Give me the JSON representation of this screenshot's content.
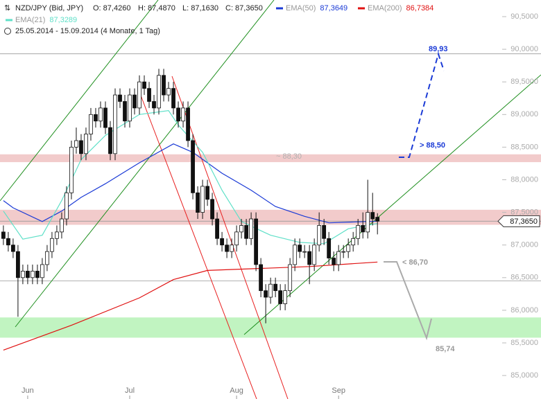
{
  "chart_data": {
    "type": "candlestick",
    "symbol": "NZD/JPY (Bid, JPY)",
    "ohlc_text": [
      "O: 87,4260",
      "H: 87,4870",
      "L: 87,1630",
      "C: 87,3650"
    ],
    "date_range": "25.05.2014 - 15.09.2014 (4 Monate, 1 Tag)",
    "last_price_label": "87,3650",
    "last_price": 87.365,
    "ylim": [
      84.64,
      90.755
    ],
    "yticks": [
      {
        "value": 85.0,
        "label": "85,0000"
      },
      {
        "value": 85.5,
        "label": "85,5000"
      },
      {
        "value": 86.0,
        "label": "86,0000"
      },
      {
        "value": 86.5,
        "label": "86,5000"
      },
      {
        "value": 87.0,
        "label": "87,0000"
      },
      {
        "value": 87.5,
        "label": "87,5000"
      },
      {
        "value": 88.0,
        "label": "88,0000"
      },
      {
        "value": 88.5,
        "label": "88,5000"
      },
      {
        "value": 89.0,
        "label": "89,0000"
      },
      {
        "value": 89.5,
        "label": "89,5000"
      },
      {
        "value": 90.0,
        "label": "90,0000"
      },
      {
        "value": 90.5,
        "label": "90,5000"
      }
    ],
    "xlim": [
      -0.7,
      102.1
    ],
    "xticks": [
      {
        "value": 5,
        "label": "Jun"
      },
      {
        "value": 26,
        "label": "Jul"
      },
      {
        "value": 48,
        "label": "Aug"
      },
      {
        "value": 69,
        "label": "Sep"
      }
    ],
    "candles": [
      [
        87.2,
        87.3,
        87.0,
        87.1
      ],
      [
        87.1,
        87.2,
        86.9,
        87.0
      ],
      [
        87.0,
        87.1,
        86.8,
        86.9
      ],
      [
        86.9,
        87.0,
        85.9,
        86.5
      ],
      [
        86.5,
        86.7,
        86.4,
        86.6
      ],
      [
        86.6,
        86.7,
        86.4,
        86.5
      ],
      [
        86.5,
        86.7,
        86.4,
        86.6
      ],
      [
        86.6,
        86.7,
        86.4,
        86.5
      ],
      [
        86.5,
        86.8,
        86.4,
        86.7
      ],
      [
        86.7,
        87.0,
        86.6,
        86.9
      ],
      [
        86.9,
        87.2,
        86.8,
        87.1
      ],
      [
        87.1,
        87.3,
        87.0,
        87.2
      ],
      [
        87.2,
        87.5,
        87.1,
        87.4
      ],
      [
        87.4,
        87.9,
        87.3,
        87.8
      ],
      [
        87.8,
        88.6,
        87.7,
        88.5
      ],
      [
        88.5,
        88.8,
        88.4,
        88.6
      ],
      [
        88.6,
        88.7,
        88.3,
        88.4
      ],
      [
        88.4,
        88.8,
        88.3,
        88.7
      ],
      [
        88.7,
        89.1,
        88.6,
        89.0
      ],
      [
        89.0,
        89.1,
        88.8,
        88.9
      ],
      [
        88.9,
        89.2,
        88.8,
        89.1
      ],
      [
        89.1,
        89.2,
        88.7,
        88.8
      ],
      [
        88.8,
        88.9,
        88.3,
        88.4
      ],
      [
        88.4,
        89.4,
        88.3,
        89.3
      ],
      [
        89.3,
        89.4,
        89.1,
        89.2
      ],
      [
        89.2,
        89.3,
        88.8,
        88.9
      ],
      [
        88.9,
        89.4,
        88.8,
        89.3
      ],
      [
        89.3,
        89.4,
        89.0,
        89.1
      ],
      [
        89.1,
        89.6,
        89.0,
        89.5
      ],
      [
        89.5,
        89.6,
        89.3,
        89.4
      ],
      [
        89.4,
        89.5,
        89.1,
        89.2
      ],
      [
        89.2,
        89.3,
        89.0,
        89.1
      ],
      [
        89.1,
        89.7,
        89.0,
        89.6
      ],
      [
        89.6,
        89.7,
        89.2,
        89.3
      ],
      [
        89.3,
        89.5,
        89.2,
        89.4
      ],
      [
        89.4,
        89.5,
        89.0,
        89.1
      ],
      [
        89.1,
        89.2,
        88.8,
        88.9
      ],
      [
        88.9,
        89.2,
        88.8,
        89.1
      ],
      [
        89.1,
        89.2,
        88.5,
        88.6
      ],
      [
        88.6,
        88.7,
        87.7,
        87.8
      ],
      [
        87.8,
        87.9,
        87.4,
        87.5
      ],
      [
        87.5,
        88.0,
        87.4,
        87.9
      ],
      [
        87.9,
        88.0,
        87.6,
        87.7
      ],
      [
        87.7,
        87.8,
        87.3,
        87.4
      ],
      [
        87.4,
        87.5,
        87.0,
        87.1
      ],
      [
        87.1,
        87.2,
        86.9,
        87.0
      ],
      [
        87.0,
        87.1,
        86.8,
        86.9
      ],
      [
        86.9,
        87.1,
        86.8,
        87.0
      ],
      [
        87.0,
        87.3,
        86.9,
        87.2
      ],
      [
        87.2,
        87.4,
        87.1,
        87.3
      ],
      [
        87.3,
        87.4,
        87.0,
        87.1
      ],
      [
        87.1,
        87.5,
        87.0,
        87.4
      ],
      [
        87.4,
        87.5,
        86.6,
        86.7
      ],
      [
        86.7,
        86.8,
        86.2,
        86.3
      ],
      [
        86.3,
        86.4,
        85.8,
        86.2
      ],
      [
        86.2,
        86.5,
        86.1,
        86.4
      ],
      [
        86.4,
        86.5,
        86.2,
        86.3
      ],
      [
        86.3,
        86.4,
        86.0,
        86.1
      ],
      [
        86.1,
        86.4,
        86.0,
        86.3
      ],
      [
        86.3,
        86.8,
        86.2,
        86.7
      ],
      [
        86.7,
        87.1,
        86.6,
        87.0
      ],
      [
        87.0,
        87.1,
        86.8,
        86.9
      ],
      [
        86.9,
        87.0,
        86.8,
        86.9
      ],
      [
        86.9,
        87.0,
        86.4,
        86.7
      ],
      [
        86.7,
        87.1,
        86.6,
        87.0
      ],
      [
        87.0,
        87.5,
        86.9,
        87.3
      ],
      [
        87.3,
        87.4,
        87.0,
        87.1
      ],
      [
        87.1,
        87.2,
        86.7,
        86.8
      ],
      [
        86.8,
        86.9,
        86.6,
        86.7
      ],
      [
        86.7,
        87.0,
        86.6,
        86.9
      ],
      [
        86.9,
        87.0,
        86.8,
        86.9
      ],
      [
        86.9,
        87.1,
        86.8,
        87.0
      ],
      [
        87.0,
        87.2,
        86.9,
        87.1
      ],
      [
        87.1,
        87.4,
        87.0,
        87.3
      ],
      [
        87.3,
        87.5,
        87.1,
        87.2
      ],
      [
        87.2,
        88.0,
        87.1,
        87.5
      ],
      [
        87.5,
        87.8,
        87.3,
        87.4
      ],
      [
        87.426,
        87.487,
        87.163,
        87.365
      ]
    ],
    "series": [
      {
        "name": "EMA(50)",
        "color": "#1a3ad6",
        "value_label": "87,3649",
        "x": [
          0,
          2,
          8,
          12,
          16,
          21,
          28,
          35,
          39,
          45,
          51,
          56,
          62,
          67,
          77
        ],
        "values": [
          87.68,
          87.57,
          87.36,
          87.52,
          87.73,
          87.94,
          88.26,
          88.55,
          88.42,
          88.1,
          87.84,
          87.59,
          87.44,
          87.34,
          87.3649
        ]
      },
      {
        "name": "EMA(200)",
        "color": "#e01010",
        "value_label": "86,7384",
        "x": [
          0,
          14,
          28,
          35,
          42,
          56,
          63,
          77
        ],
        "values": [
          85.39,
          85.77,
          86.19,
          86.47,
          86.61,
          86.65,
          86.67,
          86.7384
        ]
      },
      {
        "name": "EMA(21)",
        "color": "#5fe0c8",
        "value_label": "87,3289",
        "x": [
          0,
          4,
          8,
          12,
          16,
          21,
          28,
          34,
          36,
          41,
          45,
          49,
          55,
          61,
          66,
          71,
          77
        ],
        "values": [
          87.52,
          87.09,
          87.15,
          87.68,
          88.31,
          88.68,
          89.0,
          89.06,
          88.84,
          88.42,
          87.84,
          87.36,
          87.15,
          87.04,
          87.02,
          87.25,
          87.3289
        ]
      }
    ],
    "zones": [
      {
        "from": 88.27,
        "to": 88.39,
        "color": "#f0c2c2"
      },
      {
        "from": 87.31,
        "to": 87.54,
        "color": "#f0c2c2"
      },
      {
        "from": 85.58,
        "to": 85.89,
        "color": "#b6f2b6"
      }
    ],
    "hlines": [
      89.93,
      86.45,
      87.365
    ],
    "annotations": [
      "89,93",
      "> 88,50",
      "~ 88,30",
      "< 86,70",
      "85,74"
    ]
  }
}
